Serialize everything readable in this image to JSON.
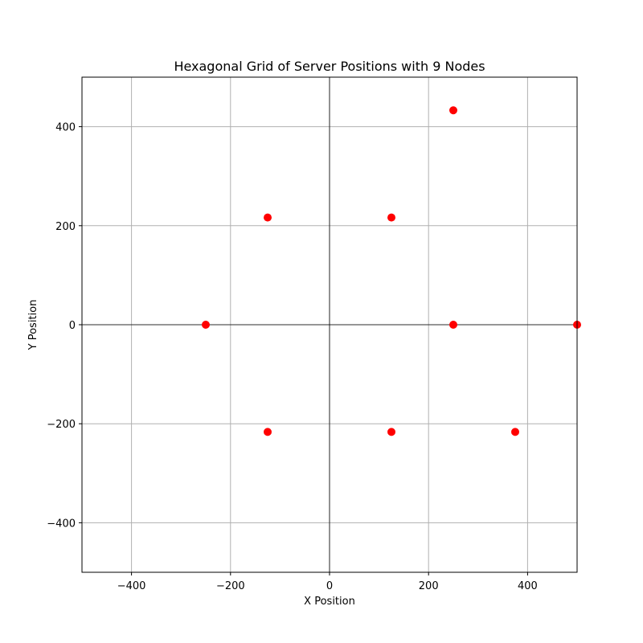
{
  "chart_data": {
    "type": "scatter",
    "title": "Hexagonal Grid of Server Positions with 9 Nodes",
    "xlabel": "X Position",
    "ylabel": "Y Position",
    "xlim": [
      -500,
      500
    ],
    "ylim": [
      -500,
      500
    ],
    "x_ticks": [
      -400,
      -200,
      0,
      200,
      400
    ],
    "y_ticks": [
      -400,
      -200,
      0,
      200,
      400
    ],
    "x_tick_labels": [
      "−400",
      "−200",
      "0",
      "200",
      "400"
    ],
    "y_tick_labels": [
      "−400",
      "−200",
      "0",
      "200",
      "400"
    ],
    "grid": true,
    "zero_lines": true,
    "marker_color": "#ff0000",
    "points": [
      {
        "x": 250,
        "y": 433
      },
      {
        "x": -125,
        "y": 216.5
      },
      {
        "x": 125,
        "y": 216.5
      },
      {
        "x": -250,
        "y": 0
      },
      {
        "x": 250,
        "y": 0
      },
      {
        "x": 500,
        "y": 0
      },
      {
        "x": -125,
        "y": -216.5
      },
      {
        "x": 125,
        "y": -216.5
      },
      {
        "x": 375,
        "y": -216.5
      }
    ]
  }
}
